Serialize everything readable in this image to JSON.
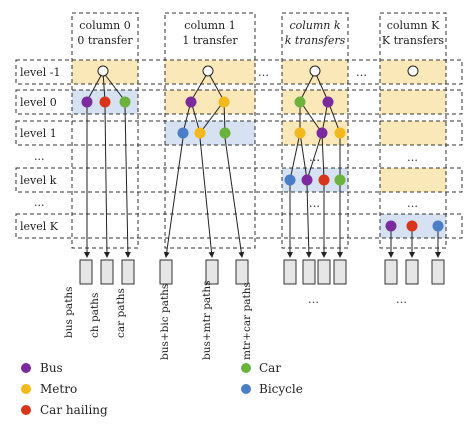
{
  "columns": [
    {
      "line1": "column 0",
      "line2": "0 transfer"
    },
    {
      "line1": "column 1",
      "line2": "1 transfer"
    },
    {
      "line1": "column k",
      "line2": "k transfers"
    },
    {
      "line1": "column K",
      "line2": "K transfers"
    }
  ],
  "levels": [
    "level -1",
    "level 0",
    "level 1",
    "...",
    "level k",
    "...",
    "level K"
  ],
  "ellipsis": "…",
  "paths": {
    "col0": [
      "bus paths",
      "ch paths",
      "car paths"
    ],
    "col1": [
      "bus+bic paths",
      "bus+mtr paths",
      "mtr+car paths"
    ]
  },
  "legend": [
    {
      "label": "Bus",
      "color": "#7b2b9e"
    },
    {
      "label": "Car",
      "color": "#6cb33e"
    },
    {
      "label": "Metro",
      "color": "#f2b81c"
    },
    {
      "label": "Bicycle",
      "color": "#4a7ec6"
    },
    {
      "label": "Car hailing",
      "color": "#d8361b"
    }
  ],
  "colors": {
    "yellow_band": "#fbe8b8",
    "blue_band": "#d6e1f1",
    "bus": "#7b2b9e",
    "metro": "#f2b81c",
    "car": "#6cb33e",
    "bicycle": "#4a7ec6",
    "carhailing": "#d8361b"
  }
}
